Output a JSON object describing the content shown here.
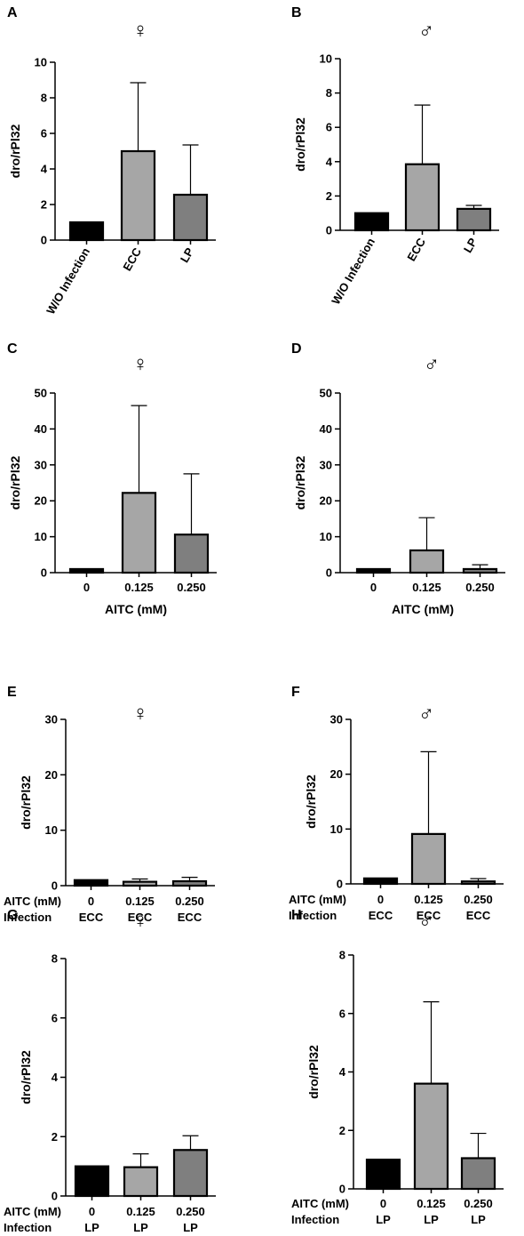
{
  "colors": {
    "bar_0": "#000000",
    "bar_1": "#a6a6a6",
    "bar_2": "#7f7f7f",
    "stroke": "#000000"
  },
  "chart_data": [
    {
      "panel": "A",
      "title": "♀",
      "type": "bar",
      "categories": [
        "W/O Infection",
        "ECC",
        "LP"
      ],
      "values": [
        1.0,
        5.0,
        2.55
      ],
      "error_upper": [
        1.0,
        8.85,
        5.35
      ],
      "ylabel": "dro/rPl32",
      "xlabel": "",
      "ylim": [
        0,
        10
      ],
      "yticks": [
        0,
        2,
        4,
        6,
        8,
        10
      ],
      "category_rows": [],
      "rotated_categories": true,
      "grid": false
    },
    {
      "panel": "B",
      "title": "♂",
      "type": "bar",
      "categories": [
        "W/O Infection",
        "ECC",
        "LP"
      ],
      "values": [
        1.0,
        3.85,
        1.25
      ],
      "error_upper": [
        1.0,
        7.3,
        1.45
      ],
      "ylabel": "dro/rPl32",
      "xlabel": "",
      "ylim": [
        0,
        10
      ],
      "yticks": [
        0,
        2,
        4,
        6,
        8,
        10
      ],
      "category_rows": [],
      "rotated_categories": true,
      "grid": false
    },
    {
      "panel": "C",
      "title": "♀",
      "type": "bar",
      "categories": [
        "0",
        "0.125",
        "0.250"
      ],
      "values": [
        1.0,
        22.2,
        10.6
      ],
      "error_upper": [
        1.0,
        46.5,
        27.5
      ],
      "ylabel": "dro/rPl32",
      "xlabel": "AITC (mM)",
      "ylim": [
        0,
        50
      ],
      "yticks": [
        0,
        10,
        20,
        30,
        40,
        50
      ],
      "category_rows": [],
      "rotated_categories": false,
      "grid": false
    },
    {
      "panel": "D",
      "title": "♂",
      "type": "bar",
      "categories": [
        "0",
        "0.125",
        "0.250"
      ],
      "values": [
        1.0,
        6.2,
        1.0
      ],
      "error_upper": [
        1.0,
        15.3,
        2.2
      ],
      "ylabel": "dro/rPl32",
      "xlabel": "AITC (mM)",
      "ylim": [
        0,
        50
      ],
      "yticks": [
        0,
        10,
        20,
        30,
        40,
        50
      ],
      "category_rows": [],
      "rotated_categories": false,
      "grid": false
    },
    {
      "panel": "E",
      "title": "♀",
      "type": "bar",
      "categories": [
        "0",
        "0.125",
        "0.250"
      ],
      "values": [
        1.0,
        0.7,
        0.8
      ],
      "error_upper": [
        1.0,
        1.2,
        1.5
      ],
      "ylabel": "dro/rPl32",
      "xlabel": "",
      "ylim": [
        0,
        30
      ],
      "yticks": [
        0,
        10,
        20,
        30
      ],
      "category_rows": [
        {
          "label": "AITC (mM)",
          "values": [
            "0",
            "0.125",
            "0.250"
          ]
        },
        {
          "label": "Infection",
          "values": [
            "ECC",
            "ECC",
            "ECC"
          ]
        }
      ],
      "rotated_categories": false,
      "grid": false
    },
    {
      "panel": "F",
      "title": "♂",
      "type": "bar",
      "categories": [
        "0",
        "0.125",
        "0.250"
      ],
      "values": [
        1.0,
        9.1,
        0.45
      ],
      "error_upper": [
        1.0,
        24.1,
        0.95
      ],
      "ylabel": "dro/rPl32",
      "xlabel": "",
      "ylim": [
        0,
        30
      ],
      "yticks": [
        0,
        10,
        20,
        30
      ],
      "category_rows": [
        {
          "label": "AITC (mM)",
          "values": [
            "0",
            "0.125",
            "0.250"
          ]
        },
        {
          "label": "Infection",
          "values": [
            "ECC",
            "ECC",
            "ECC"
          ]
        }
      ],
      "rotated_categories": false,
      "grid": false
    },
    {
      "panel": "G",
      "title": "♀",
      "type": "bar",
      "categories": [
        "0",
        "0.125",
        "0.250"
      ],
      "values": [
        1.0,
        0.97,
        1.55
      ],
      "error_upper": [
        1.0,
        1.42,
        2.03
      ],
      "ylabel": "dro/rPl32",
      "xlabel": "",
      "ylim": [
        0,
        8
      ],
      "yticks": [
        0,
        2,
        4,
        6,
        8
      ],
      "category_rows": [
        {
          "label": "AITC (mM)",
          "values": [
            "0",
            "0.125",
            "0.250"
          ]
        },
        {
          "label": "Infection",
          "values": [
            "LP",
            "LP",
            "LP"
          ]
        }
      ],
      "rotated_categories": false,
      "grid": false
    },
    {
      "panel": "H",
      "title": "♂",
      "type": "bar",
      "categories": [
        "0",
        "0.125",
        "0.250"
      ],
      "values": [
        1.0,
        3.6,
        1.05
      ],
      "error_upper": [
        1.0,
        6.4,
        1.9
      ],
      "ylabel": "dro/rPl32",
      "xlabel": "",
      "ylim": [
        0,
        8
      ],
      "yticks": [
        0,
        2,
        4,
        6,
        8
      ],
      "category_rows": [
        {
          "label": "AITC (mM)",
          "values": [
            "0",
            "0.125",
            "0.250"
          ]
        },
        {
          "label": "Infection",
          "values": [
            "LP",
            "LP",
            "LP"
          ]
        }
      ],
      "rotated_categories": false,
      "grid": false
    }
  ]
}
